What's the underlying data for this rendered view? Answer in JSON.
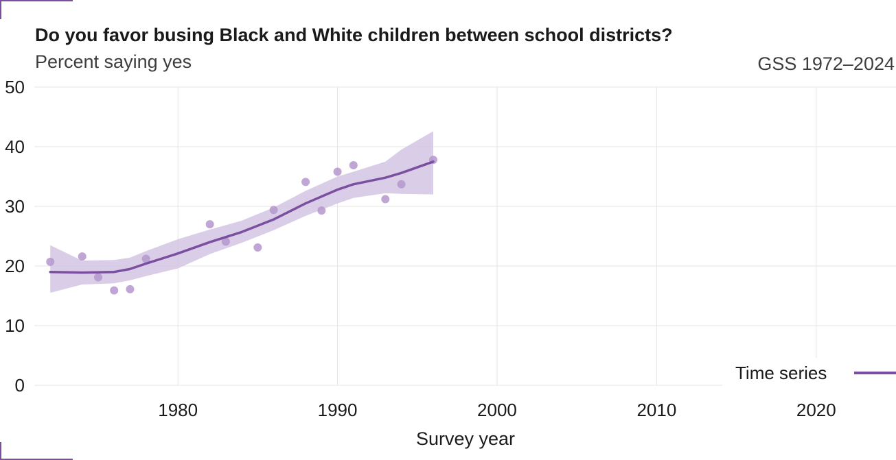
{
  "colors": {
    "accent": "#7b4fa0",
    "band": "#d4c4e3",
    "points": "#b497cc",
    "grid": "#e4e4e4",
    "corner": "#7b4fa0"
  },
  "header": {
    "title": "Do you favor busing Black and White children between school districts?",
    "subtitle": "Percent saying yes",
    "caption": "GSS 1972–2024"
  },
  "legend": {
    "label": "Time series"
  },
  "chart_data": {
    "type": "scatter",
    "xlabel": "Survey year",
    "ylabel": "",
    "xlim": [
      1971,
      2025
    ],
    "ylim": [
      0,
      50
    ],
    "x_ticks": [
      1980,
      1990,
      2000,
      2010,
      2020
    ],
    "y_ticks": [
      0,
      10,
      20,
      30,
      40,
      50
    ],
    "grid": true,
    "legend_position": "bottom-right",
    "points": [
      {
        "x": 1972,
        "y": 20.7
      },
      {
        "x": 1974,
        "y": 21.6
      },
      {
        "x": 1975,
        "y": 18.1
      },
      {
        "x": 1976,
        "y": 15.9
      },
      {
        "x": 1977,
        "y": 16.1
      },
      {
        "x": 1978,
        "y": 21.2
      },
      {
        "x": 1982,
        "y": 27.0
      },
      {
        "x": 1983,
        "y": 24.1
      },
      {
        "x": 1985,
        "y": 23.1
      },
      {
        "x": 1986,
        "y": 29.4
      },
      {
        "x": 1988,
        "y": 34.1
      },
      {
        "x": 1989,
        "y": 29.3
      },
      {
        "x": 1990,
        "y": 35.8
      },
      {
        "x": 1991,
        "y": 36.9
      },
      {
        "x": 1993,
        "y": 31.2
      },
      {
        "x": 1994,
        "y": 33.7
      },
      {
        "x": 1996,
        "y": 37.8
      }
    ],
    "series": [
      {
        "name": "Time series",
        "x": [
          1972,
          1974,
          1976,
          1977,
          1978,
          1980,
          1982,
          1984,
          1986,
          1988,
          1990,
          1991,
          1993,
          1994,
          1996
        ],
        "y": [
          19.0,
          18.9,
          19.0,
          19.5,
          20.4,
          22.1,
          24.0,
          25.7,
          27.8,
          30.5,
          32.8,
          33.7,
          34.8,
          35.6,
          37.5
        ],
        "lower": [
          15.5,
          16.9,
          17.1,
          17.6,
          18.3,
          19.6,
          22.0,
          23.9,
          26.0,
          28.4,
          30.5,
          31.4,
          32.2,
          32.1,
          32.0
        ],
        "upper": [
          23.5,
          20.9,
          21.0,
          21.4,
          22.5,
          24.5,
          26.1,
          27.6,
          29.8,
          32.6,
          35.0,
          35.8,
          37.5,
          39.5,
          42.6
        ]
      }
    ]
  }
}
